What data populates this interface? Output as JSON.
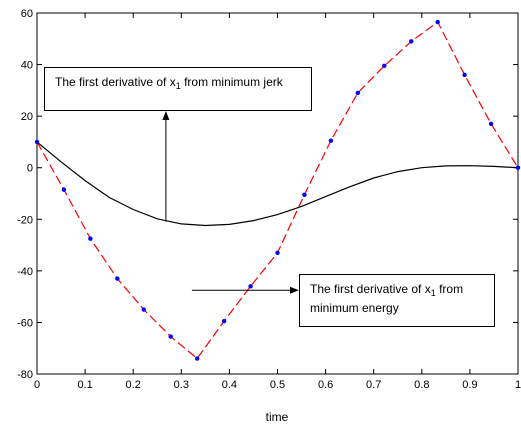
{
  "chart_data": {
    "type": "line",
    "title": "",
    "xlabel": "time",
    "ylabel": "",
    "xlim": [
      0,
      1
    ],
    "ylim": [
      -80,
      60
    ],
    "xticks": [
      0,
      0.1,
      0.2,
      0.3,
      0.4,
      0.5,
      0.6,
      0.7,
      0.8,
      0.9,
      1
    ],
    "xtick_labels": [
      "0",
      "0.1",
      "0.2",
      "0.3",
      "0.4",
      "0.5",
      "0.6",
      "0.7",
      "0.8",
      "0.9",
      "1"
    ],
    "yticks": [
      -80,
      -60,
      -40,
      -20,
      0,
      20,
      40,
      60
    ],
    "ytick_labels": [
      "-80",
      "-60",
      "-40",
      "-20",
      "0",
      "20",
      "40",
      "60"
    ],
    "grid": false,
    "legend": "none",
    "series": [
      {
        "color": "#000000",
        "style": "solid",
        "x": [
          0,
          0.05,
          0.1,
          0.15,
          0.2,
          0.25,
          0.3,
          0.35,
          0.4,
          0.45,
          0.5,
          0.55,
          0.6,
          0.65,
          0.7,
          0.75,
          0.8,
          0.85,
          0.9,
          0.95,
          1
        ],
        "y": [
          10,
          2.3,
          -5.0,
          -11.5,
          -16.2,
          -19.8,
          -21.8,
          -22.4,
          -22.0,
          -20.5,
          -18.2,
          -15.0,
          -11.2,
          -7.4,
          -4.0,
          -1.5,
          0,
          0.7,
          0.8,
          0.5,
          0
        ]
      },
      {
        "color": "#ff0000",
        "style": "dashed",
        "marker_color": "#0000ff",
        "x": [
          0,
          0.056,
          0.111,
          0.167,
          0.222,
          0.278,
          0.333,
          0.389,
          0.444,
          0.5,
          0.556,
          0.611,
          0.667,
          0.722,
          0.778,
          0.833,
          0.889,
          0.944,
          1
        ],
        "y": [
          10,
          -8.5,
          -27.5,
          -43,
          -55,
          -65.5,
          -74,
          -59.5,
          -46,
          -33,
          -10.5,
          10.5,
          29,
          39.5,
          49,
          56.5,
          36,
          17,
          0
        ]
      }
    ],
    "annotations": [
      {
        "text_before": "The first derivative of x",
        "subscript": "1",
        "text_after": " from minimum jerk",
        "arrow_to": [
          0.268,
          -21
        ]
      },
      {
        "text_before": "The first derivative of x",
        "subscript": "1",
        "text_after": " from",
        "line2": "minimum energy",
        "arrow_from": [
          0.322,
          -47.5
        ]
      }
    ]
  }
}
